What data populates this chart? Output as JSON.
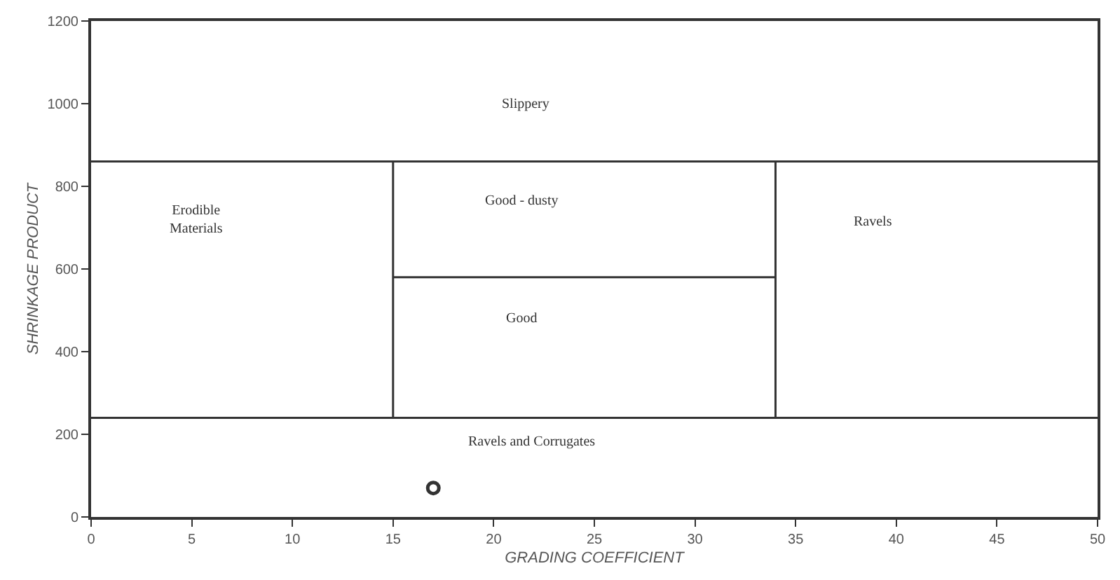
{
  "chart_data": {
    "type": "line",
    "xlabel": "GRADING COEFFICIENT",
    "ylabel": "SHRINKAGE PRODUCT",
    "xlim": [
      0,
      50
    ],
    "xticks": [
      0,
      5,
      10,
      15,
      20,
      25,
      30,
      35,
      40,
      45,
      50
    ],
    "ylim": [
      0,
      1200
    ],
    "yticks": [
      0,
      200,
      400,
      600,
      800,
      1000,
      1200
    ],
    "marker": "none",
    "line_style": "solid",
    "series": [
      {
        "color": "#333333",
        "x": [
          0,
          50
        ],
        "values": [
          860,
          860
        ]
      },
      {
        "color": "#333333",
        "x": [
          0,
          50
        ],
        "values": [
          240,
          240
        ]
      },
      {
        "color": "#333333",
        "x": [
          15,
          15
        ],
        "values": [
          240,
          860
        ]
      },
      {
        "color": "#333333",
        "x": [
          34,
          34
        ],
        "values": [
          240,
          860
        ]
      },
      {
        "color": "#333333",
        "x": [
          15,
          34
        ],
        "values": [
          580,
          580
        ]
      },
      {
        "type": "scatter",
        "marker": "circle",
        "color": "#333333",
        "x": [
          17
        ],
        "values": [
          70
        ]
      }
    ],
    "annotations": [
      "Slippery",
      "Erodible\nMaterials",
      "Good - dusty",
      "Ravels",
      "Good",
      "Ravels and Corrugates"
    ]
  }
}
